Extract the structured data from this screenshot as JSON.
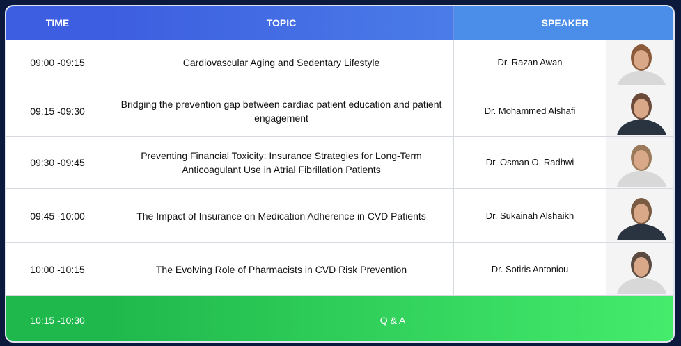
{
  "header": {
    "time": "TIME",
    "topic": "TOPIC",
    "speaker": "SPEAKER"
  },
  "rows": [
    {
      "time": "09:00 -09:15",
      "topic": "Cardiovascular Aging and Sedentary Lifestyle",
      "speaker": "Dr. Razan Awan"
    },
    {
      "time": "09:15 -09:30",
      "topic": "Bridging the prevention gap between cardiac patient education and patient engagement",
      "speaker": "Dr. Mohammed Alshafi"
    },
    {
      "time": "09:30 -09:45",
      "topic": "Preventing Financial Toxicity: Insurance Strategies for Long-Term Anticoagulant Use in Atrial Fibrillation Patients",
      "speaker": "Dr. Osman O. Radhwi"
    },
    {
      "time": "09:45 -10:00",
      "topic": "The Impact of Insurance on Medication Adherence in CVD Patients",
      "speaker": "Dr. Sukainah Alshaikh"
    },
    {
      "time": "10:00 -10:15",
      "topic": "The Evolving Role of Pharmacists in CVD Risk Prevention",
      "speaker": "Dr. Sotiris Antoniou"
    }
  ],
  "qa": {
    "time": "10:15 -10:30",
    "label": "Q & A"
  }
}
